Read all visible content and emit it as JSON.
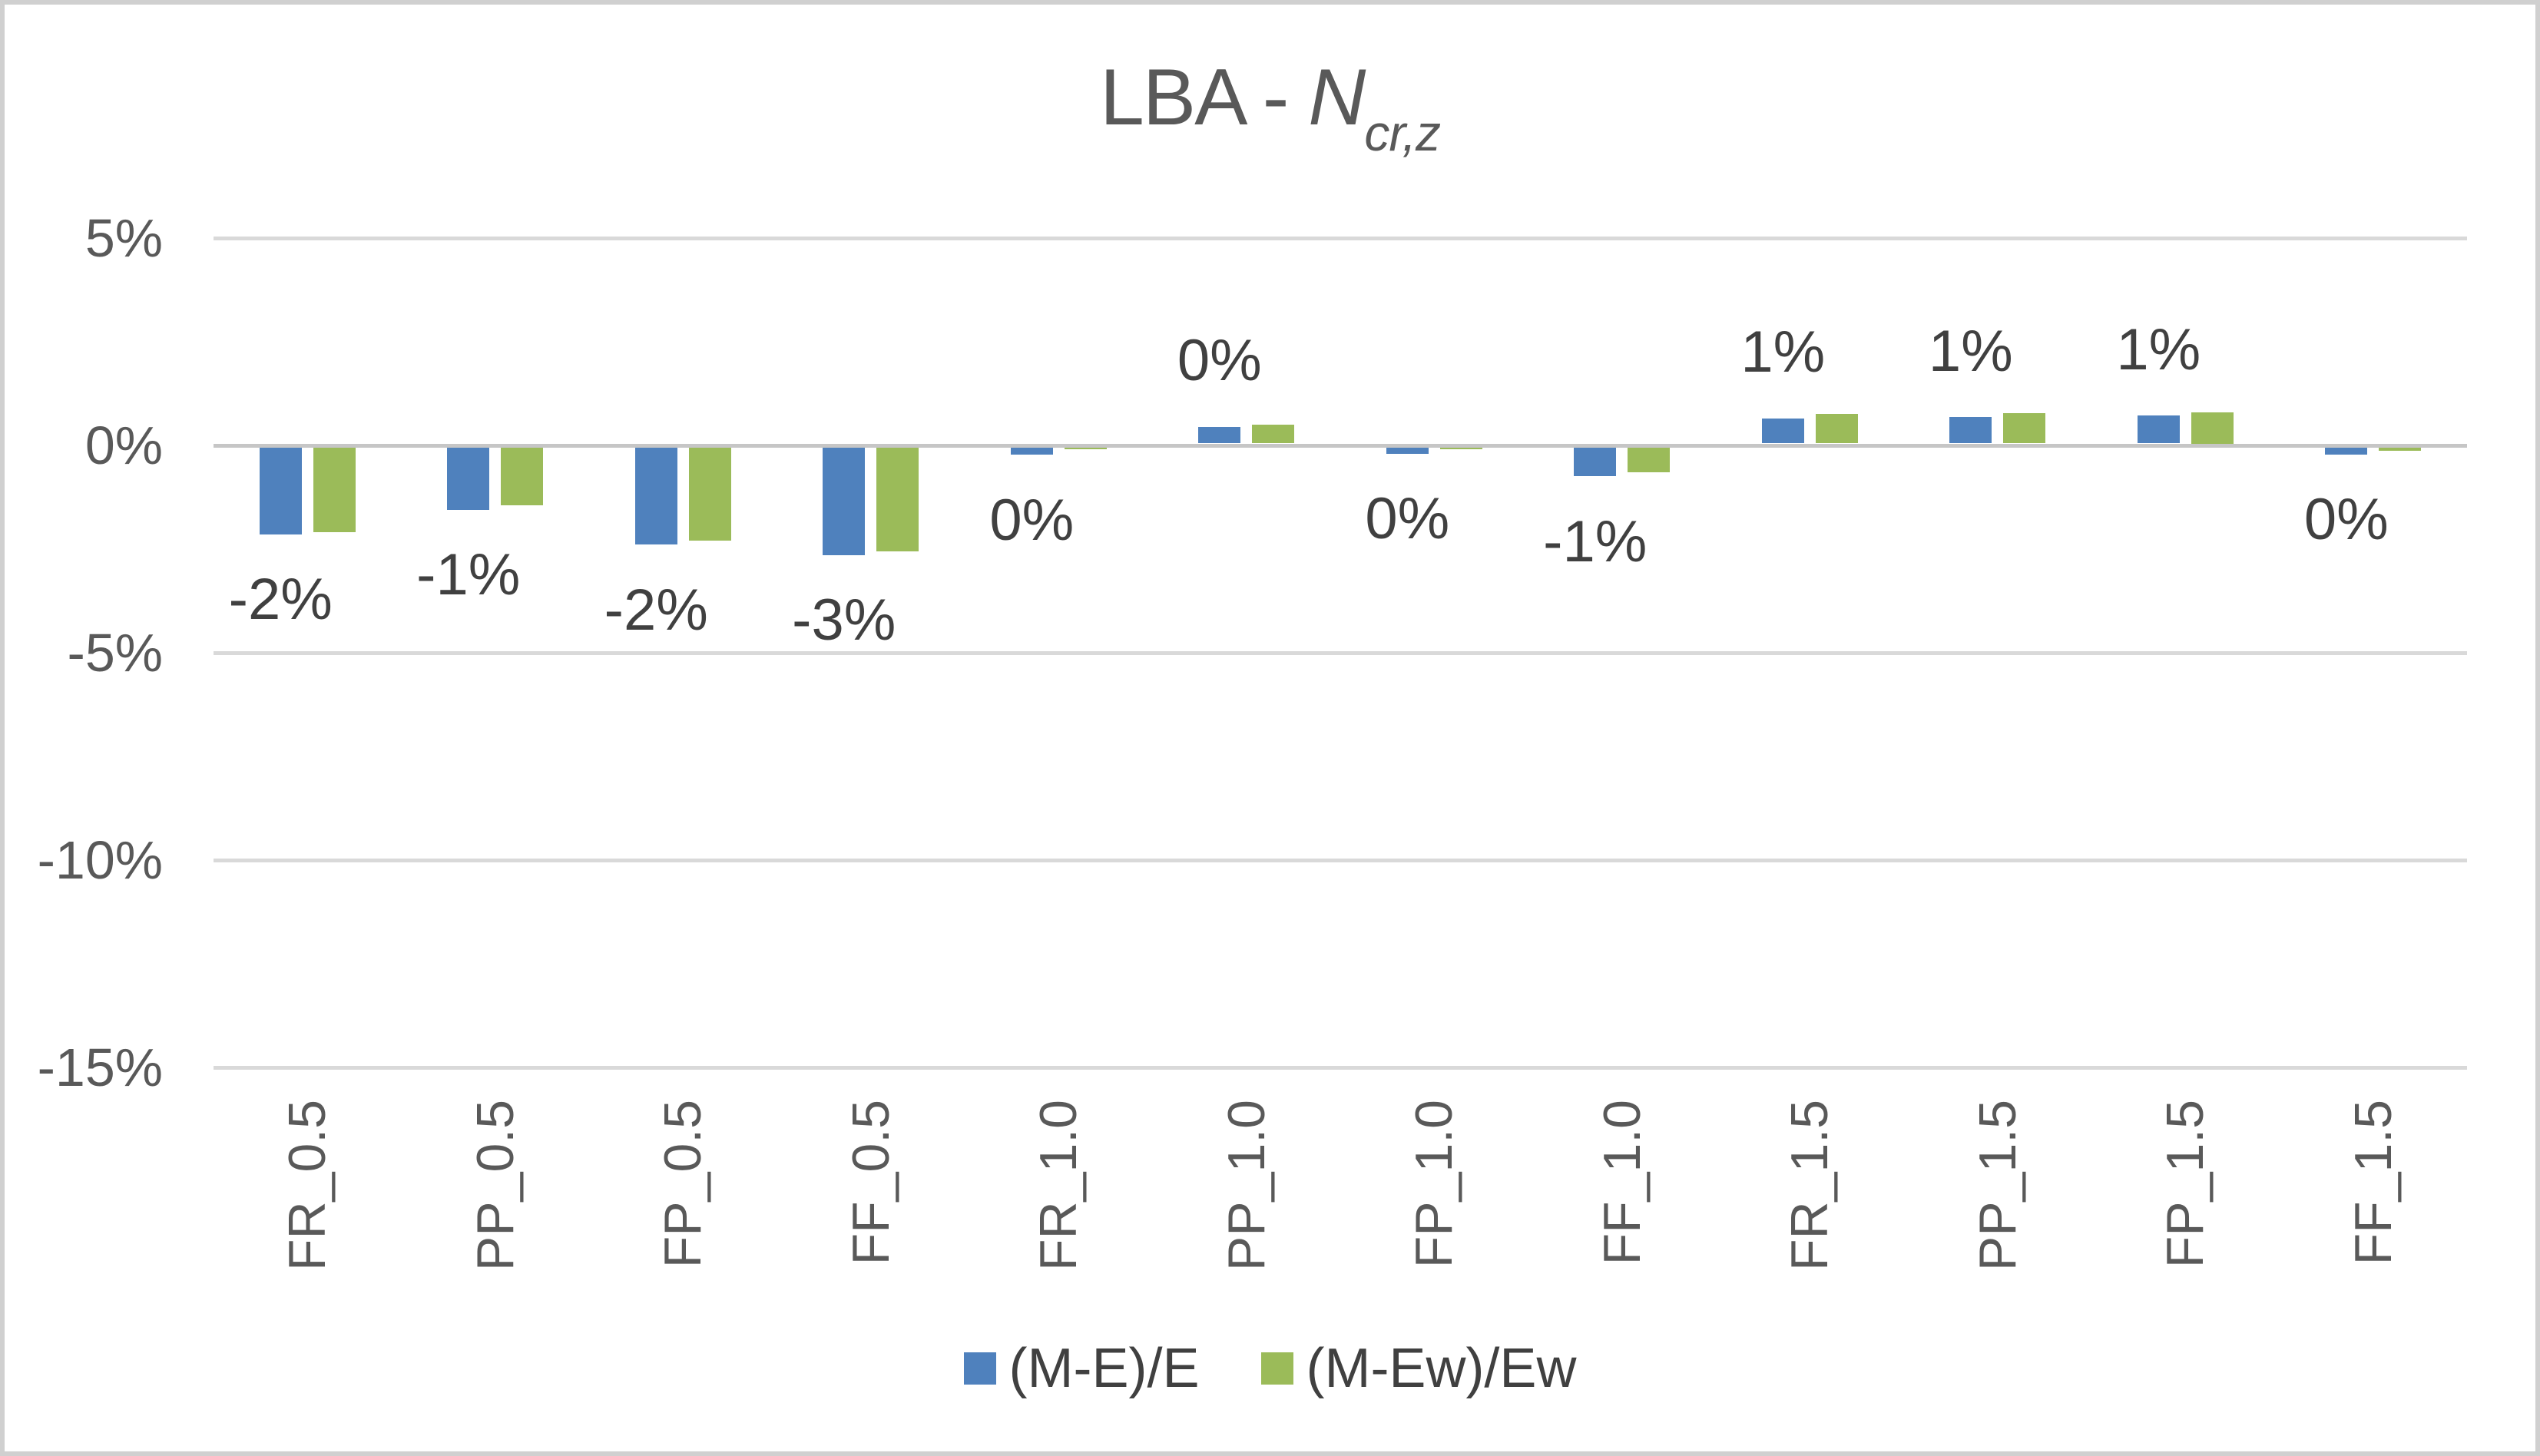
{
  "chart_title": {
    "prefix": "LBA - ",
    "symbol": "N",
    "subscript": "cr,z",
    "display": "LBA - N_cr,z"
  },
  "colors": {
    "series1": "#4F81BD",
    "series2": "#9BBB59",
    "gridline": "#D9D9D9",
    "zero_line": "#C6C6C6",
    "axis_text": "#595959",
    "label_text": "#404040",
    "chart_border": "#D0D0D0",
    "background": "#FFFFFF"
  },
  "chart_data": {
    "type": "bar",
    "title": "LBA - N_cr,z",
    "categories": [
      "FR_0.5",
      "PP_0.5",
      "FP_0.5",
      "FF_0.5",
      "FR_1.0",
      "PP_1.0",
      "FP_1.0",
      "FF_1.0",
      "FR_1.5",
      "PP_1.5",
      "FP_1.5",
      "FF_1.5"
    ],
    "series": [
      {
        "name": "(M-E)/E",
        "color": "#4F81BD",
        "values": [
          -2.1,
          -1.5,
          -2.35,
          -2.6,
          -0.18,
          0.4,
          -0.15,
          -0.7,
          0.61,
          0.63,
          0.67,
          -0.17
        ],
        "data_labels": [
          "-2%",
          "-1%",
          "-2%",
          "-3%",
          "0%",
          "0%",
          "0%",
          "-1%",
          "1%",
          "1%",
          "1%",
          "0%"
        ]
      },
      {
        "name": "(M-Ew)/Ew",
        "color": "#9BBB59",
        "values": [
          -2.05,
          -1.4,
          -2.25,
          -2.5,
          -0.05,
          0.46,
          -0.04,
          -0.6,
          0.72,
          0.73,
          0.75,
          -0.09
        ]
      }
    ],
    "ylabel": "",
    "xlabel": "",
    "ylim": [
      -15,
      5
    ],
    "y_ticks": [
      5,
      0,
      -5,
      -10,
      -15
    ],
    "y_tick_labels": [
      "5%",
      "0%",
      "-5%",
      "-10%",
      "-15%"
    ],
    "grid": "horizontal",
    "legend_position": "bottom"
  }
}
